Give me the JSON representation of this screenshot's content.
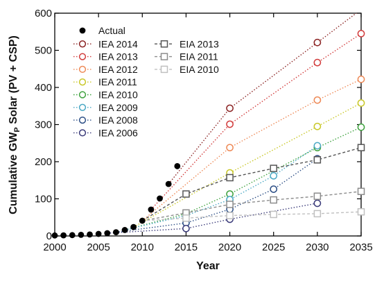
{
  "chart_data": {
    "type": "line",
    "xlabel": "Year",
    "ylabel": {
      "main": "Cumulative GW",
      "sub": "P",
      "rest": " Solar (PV + CSP)"
    },
    "xlim": [
      2000,
      2035
    ],
    "ylim": [
      0,
      600
    ],
    "x_ticks": [
      2000,
      2005,
      2010,
      2015,
      2020,
      2025,
      2030,
      2035
    ],
    "y_ticks": [
      0,
      100,
      200,
      300,
      400,
      500,
      600
    ],
    "legend_placement": "top-left",
    "actual": {
      "name": "Actual",
      "color": "#000000",
      "x": [
        2000,
        2001,
        2002,
        2003,
        2004,
        2005,
        2006,
        2007,
        2008,
        2009,
        2010,
        2011,
        2012,
        2013,
        2014
      ],
      "y": [
        1.3,
        1.6,
        2.2,
        3,
        4,
        5.5,
        7.5,
        10,
        16,
        24,
        41,
        71,
        101,
        140,
        188
      ]
    },
    "series": [
      {
        "name": "IEA 2014",
        "color": "#8b2323",
        "marker": "circle",
        "x": [
          2013,
          2020,
          2030,
          2035
        ],
        "y": [
          140,
          344,
          521,
          610
        ]
      },
      {
        "name": "IEA 2013",
        "color": "#d23c3c",
        "marker": "circle",
        "x": [
          2011,
          2020,
          2030,
          2035
        ],
        "y": [
          71,
          301,
          467,
          545
        ]
      },
      {
        "name": "IEA 2012",
        "color": "#ee8a57",
        "marker": "circle",
        "x": [
          2010,
          2020,
          2030,
          2035
        ],
        "y": [
          41,
          238,
          366,
          422
        ]
      },
      {
        "name": "IEA 2011",
        "color": "#c9c828",
        "marker": "circle",
        "x": [
          2009,
          2020,
          2030,
          2035
        ],
        "y": [
          24,
          170,
          295,
          358
        ]
      },
      {
        "name": "IEA 2010",
        "color": "#3ea23e",
        "marker": "circle",
        "x": [
          2008,
          2015,
          2020,
          2030,
          2035
        ],
        "y": [
          16,
          60,
          113,
          238,
          293
        ]
      },
      {
        "name": "IEA 2009",
        "color": "#4aa8c4",
        "marker": "circle",
        "x": [
          2008,
          2015,
          2020,
          2025,
          2030
        ],
        "y": [
          16,
          55,
          98,
          162,
          243
        ]
      },
      {
        "name": "IEA 2008",
        "color": "#2d4f86",
        "marker": "circle",
        "x": [
          2007,
          2015,
          2020,
          2025,
          2030
        ],
        "y": [
          10,
          35,
          72,
          126,
          208
        ]
      },
      {
        "name": "IEA 2006",
        "color": "#3b3b7a",
        "marker": "circle",
        "x": [
          2006,
          2015,
          2020,
          2030
        ],
        "y": [
          7.5,
          20,
          45,
          88
        ]
      },
      {
        "name": "EIA 2013",
        "color": "#555555",
        "marker": "square",
        "x": [
          2010,
          2015,
          2020,
          2025,
          2030,
          2035
        ],
        "y": [
          41,
          113,
          157,
          182,
          205,
          238
        ]
      },
      {
        "name": "EIA 2011",
        "color": "#8c8c8c",
        "marker": "square",
        "x": [
          2010,
          2015,
          2020,
          2025,
          2030,
          2035
        ],
        "y": [
          41,
          62,
          85,
          97,
          107,
          120
        ]
      },
      {
        "name": "EIA 2010",
        "color": "#c0c0c0",
        "marker": "square",
        "x": [
          2010,
          2015,
          2020,
          2025,
          2030,
          2035
        ],
        "y": [
          41,
          48,
          55,
          58,
          60,
          65
        ]
      }
    ]
  }
}
